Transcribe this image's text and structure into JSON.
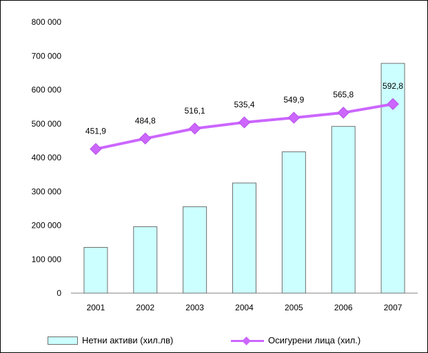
{
  "chart_data": {
    "type": "bar+line",
    "categories": [
      "2001",
      "2002",
      "2003",
      "2004",
      "2005",
      "2006",
      "2007"
    ],
    "y_axis": {
      "min": 0,
      "max": 800000,
      "ticks": [
        0,
        100000,
        200000,
        300000,
        400000,
        500000,
        600000,
        700000,
        800000
      ],
      "tick_labels": [
        "0",
        "100 000",
        "200 000",
        "300 000",
        "400 000",
        "500 000",
        "600 000",
        "700 000",
        "800 000"
      ]
    },
    "series": [
      {
        "name": "Нетни активи (хил.лв)",
        "type": "bar",
        "values": [
          135000,
          196000,
          255000,
          325000,
          417000,
          492000,
          678000
        ],
        "color": "#ccffff",
        "border_color": "#6f6f6f"
      },
      {
        "name": "Осигурени лица (хил.)",
        "type": "line",
        "values": [
          451.9,
          484.8,
          516.1,
          535.4,
          549.9,
          565.8,
          592.8
        ],
        "data_labels": [
          "451,9",
          "484,8",
          "516,1",
          "535,4",
          "549,9",
          "565,8",
          "592,8"
        ],
        "color": "#cc66ff"
      }
    ],
    "line_axis_range": [
      0,
      850
    ],
    "legend_position": "bottom",
    "grid": false
  }
}
